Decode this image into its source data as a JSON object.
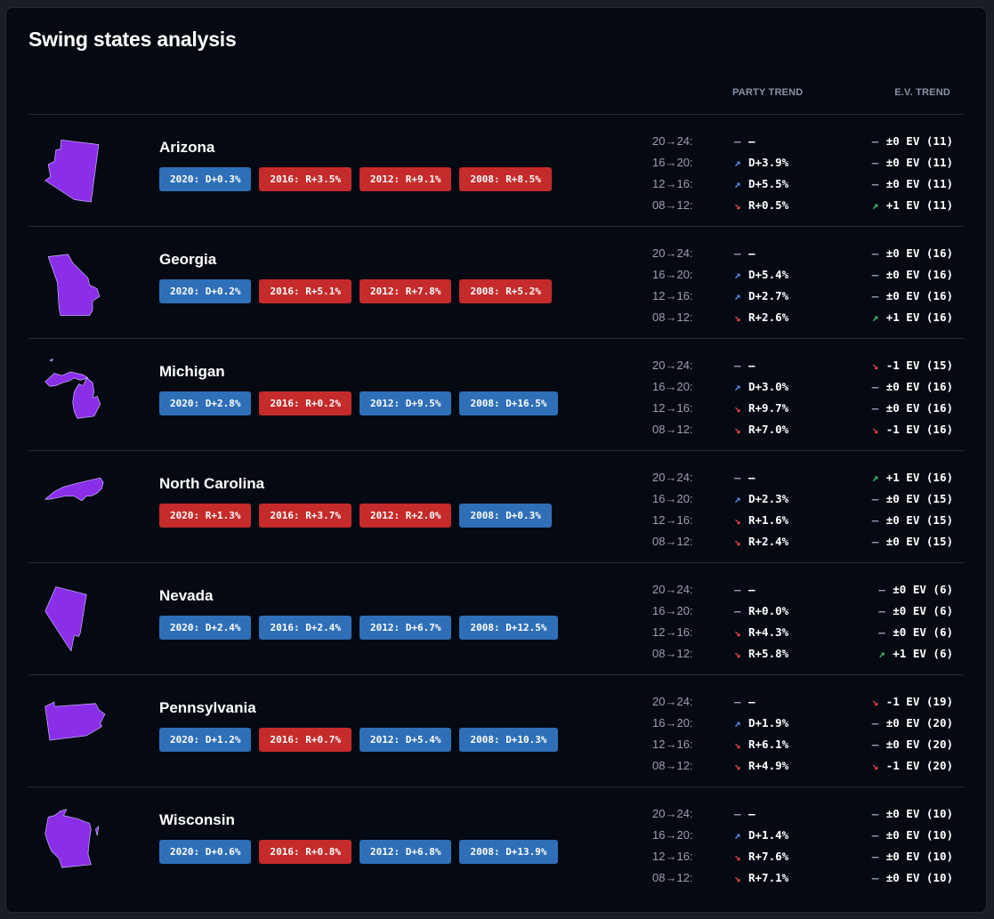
{
  "title": "Swing states analysis",
  "headers": {
    "party_trend": "PARTY TREND",
    "ev_trend": "E.V. TREND"
  },
  "colors": {
    "dem": "#2f6fb8",
    "rep": "#c62b2b",
    "map": "#8a2ee8",
    "up_blue": "#5b8cf0",
    "down_red": "#e34848",
    "up_green": "#3fbf6a"
  },
  "states": [
    {
      "name": "Arizona",
      "map_icon": "arizona-map-icon",
      "results": [
        {
          "label": "2020: D+0.3%",
          "party": "D"
        },
        {
          "label": "2016: R+3.5%",
          "party": "R"
        },
        {
          "label": "2012: R+9.1%",
          "party": "R"
        },
        {
          "label": "2008: R+8.5%",
          "party": "R"
        }
      ],
      "trends": [
        {
          "period": "20→24:",
          "party_icon": "flat",
          "party": "—",
          "ev_icon": "flat",
          "ev": "±0 EV (11)"
        },
        {
          "period": "16→20:",
          "party_icon": "up-blue",
          "party": "D+3.9%",
          "ev_icon": "flat",
          "ev": "±0 EV (11)"
        },
        {
          "period": "12→16:",
          "party_icon": "up-blue",
          "party": "D+5.5%",
          "ev_icon": "flat",
          "ev": "±0 EV (11)"
        },
        {
          "period": "08→12:",
          "party_icon": "down",
          "party": "R+0.5%",
          "ev_icon": "up-green",
          "ev": "+1 EV (11)"
        }
      ]
    },
    {
      "name": "Georgia",
      "map_icon": "georgia-map-icon",
      "results": [
        {
          "label": "2020: D+0.2%",
          "party": "D"
        },
        {
          "label": "2016: R+5.1%",
          "party": "R"
        },
        {
          "label": "2012: R+7.8%",
          "party": "R"
        },
        {
          "label": "2008: R+5.2%",
          "party": "R"
        }
      ],
      "trends": [
        {
          "period": "20→24:",
          "party_icon": "flat",
          "party": "—",
          "ev_icon": "flat",
          "ev": "±0 EV (16)"
        },
        {
          "period": "16→20:",
          "party_icon": "up-blue",
          "party": "D+5.4%",
          "ev_icon": "flat",
          "ev": "±0 EV (16)"
        },
        {
          "period": "12→16:",
          "party_icon": "up-blue",
          "party": "D+2.7%",
          "ev_icon": "flat",
          "ev": "±0 EV (16)"
        },
        {
          "period": "08→12:",
          "party_icon": "down",
          "party": "R+2.6%",
          "ev_icon": "up-green",
          "ev": "+1 EV (16)"
        }
      ]
    },
    {
      "name": "Michigan",
      "map_icon": "michigan-map-icon",
      "results": [
        {
          "label": "2020: D+2.8%",
          "party": "D"
        },
        {
          "label": "2016: R+0.2%",
          "party": "R"
        },
        {
          "label": "2012: D+9.5%",
          "party": "D"
        },
        {
          "label": "2008: D+16.5%",
          "party": "D"
        }
      ],
      "trends": [
        {
          "period": "20→24:",
          "party_icon": "flat",
          "party": "—",
          "ev_icon": "down",
          "ev": "-1 EV (15)"
        },
        {
          "period": "16→20:",
          "party_icon": "up-blue",
          "party": "D+3.0%",
          "ev_icon": "flat",
          "ev": "±0 EV (16)"
        },
        {
          "period": "12→16:",
          "party_icon": "down",
          "party": "R+9.7%",
          "ev_icon": "flat",
          "ev": "±0 EV (16)"
        },
        {
          "period": "08→12:",
          "party_icon": "down",
          "party": "R+7.0%",
          "ev_icon": "down",
          "ev": "-1 EV (16)"
        }
      ]
    },
    {
      "name": "North Carolina",
      "map_icon": "north-carolina-map-icon",
      "results": [
        {
          "label": "2020: R+1.3%",
          "party": "R"
        },
        {
          "label": "2016: R+3.7%",
          "party": "R"
        },
        {
          "label": "2012: R+2.0%",
          "party": "R"
        },
        {
          "label": "2008: D+0.3%",
          "party": "D"
        }
      ],
      "trends": [
        {
          "period": "20→24:",
          "party_icon": "flat",
          "party": "—",
          "ev_icon": "up-green",
          "ev": "+1 EV (16)"
        },
        {
          "period": "16→20:",
          "party_icon": "up-blue",
          "party": "D+2.3%",
          "ev_icon": "flat",
          "ev": "±0 EV (15)"
        },
        {
          "period": "12→16:",
          "party_icon": "down",
          "party": "R+1.6%",
          "ev_icon": "flat",
          "ev": "±0 EV (15)"
        },
        {
          "period": "08→12:",
          "party_icon": "down",
          "party": "R+2.4%",
          "ev_icon": "flat",
          "ev": "±0 EV (15)"
        }
      ]
    },
    {
      "name": "Nevada",
      "map_icon": "nevada-map-icon",
      "results": [
        {
          "label": "2020: D+2.4%",
          "party": "D"
        },
        {
          "label": "2016: D+2.4%",
          "party": "D"
        },
        {
          "label": "2012: D+6.7%",
          "party": "D"
        },
        {
          "label": "2008: D+12.5%",
          "party": "D"
        }
      ],
      "trends": [
        {
          "period": "20→24:",
          "party_icon": "flat",
          "party": "—",
          "ev_icon": "flat",
          "ev": "±0 EV (6)"
        },
        {
          "period": "16→20:",
          "party_icon": "flat",
          "party": "R+0.0%",
          "ev_icon": "flat",
          "ev": "±0 EV (6)"
        },
        {
          "period": "12→16:",
          "party_icon": "down",
          "party": "R+4.3%",
          "ev_icon": "flat",
          "ev": "±0 EV (6)"
        },
        {
          "period": "08→12:",
          "party_icon": "down",
          "party": "R+5.8%",
          "ev_icon": "up-green",
          "ev": "+1 EV (6)"
        }
      ]
    },
    {
      "name": "Pennsylvania",
      "map_icon": "pennsylvania-map-icon",
      "results": [
        {
          "label": "2020: D+1.2%",
          "party": "D"
        },
        {
          "label": "2016: R+0.7%",
          "party": "R"
        },
        {
          "label": "2012: D+5.4%",
          "party": "D"
        },
        {
          "label": "2008: D+10.3%",
          "party": "D"
        }
      ],
      "trends": [
        {
          "period": "20→24:",
          "party_icon": "flat",
          "party": "—",
          "ev_icon": "down",
          "ev": "-1 EV (19)"
        },
        {
          "period": "16→20:",
          "party_icon": "up-blue",
          "party": "D+1.9%",
          "ev_icon": "flat",
          "ev": "±0 EV (20)"
        },
        {
          "period": "12→16:",
          "party_icon": "down",
          "party": "R+6.1%",
          "ev_icon": "flat",
          "ev": "±0 EV (20)"
        },
        {
          "period": "08→12:",
          "party_icon": "down",
          "party": "R+4.9%",
          "ev_icon": "down",
          "ev": "-1 EV (20)"
        }
      ]
    },
    {
      "name": "Wisconsin",
      "map_icon": "wisconsin-map-icon",
      "results": [
        {
          "label": "2020: D+0.6%",
          "party": "D"
        },
        {
          "label": "2016: R+0.8%",
          "party": "R"
        },
        {
          "label": "2012: D+6.8%",
          "party": "D"
        },
        {
          "label": "2008: D+13.9%",
          "party": "D"
        }
      ],
      "trends": [
        {
          "period": "20→24:",
          "party_icon": "flat",
          "party": "—",
          "ev_icon": "flat",
          "ev": "±0 EV (10)"
        },
        {
          "period": "16→20:",
          "party_icon": "up-blue",
          "party": "D+1.4%",
          "ev_icon": "flat",
          "ev": "±0 EV (10)"
        },
        {
          "period": "12→16:",
          "party_icon": "down",
          "party": "R+7.6%",
          "ev_icon": "flat",
          "ev": "±0 EV (10)"
        },
        {
          "period": "08→12:",
          "party_icon": "down",
          "party": "R+7.1%",
          "ev_icon": "flat",
          "ev": "±0 EV (10)"
        }
      ]
    }
  ]
}
